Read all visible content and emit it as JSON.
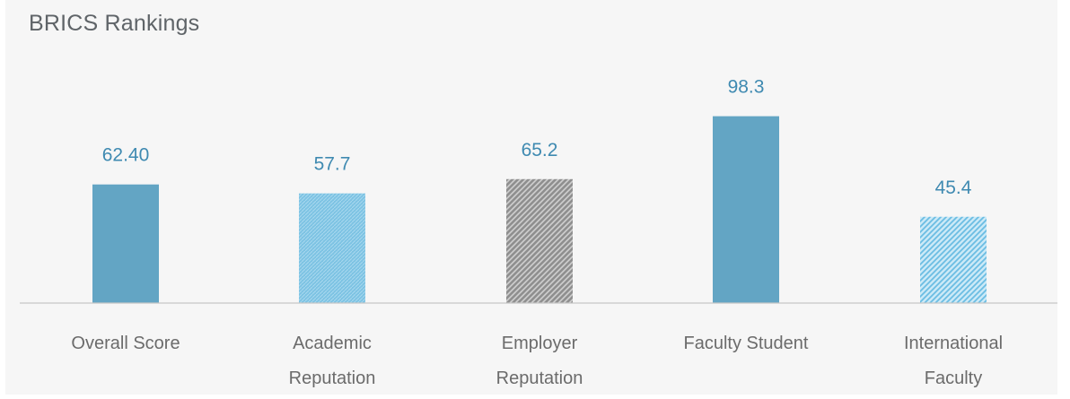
{
  "chart_data": {
    "type": "bar",
    "title": "BRICS Rankings",
    "categories": [
      [
        "Overall Score"
      ],
      [
        "Academic",
        "Reputation"
      ],
      [
        "Employer",
        "Reputation"
      ],
      [
        "Faculty Student"
      ],
      [
        "International",
        "Faculty"
      ]
    ],
    "values": [
      62.4,
      57.7,
      65.2,
      98.3,
      45.4
    ],
    "value_labels": [
      "62.40",
      "57.7",
      "65.2",
      "98.3",
      "45.4"
    ],
    "bar_styles": [
      "solid-teal",
      "stippled-lightblue",
      "hatched-gray",
      "solid-teal",
      "hatched-lightblue"
    ],
    "ylim": [
      0,
      100
    ],
    "grid": false,
    "legend": "none",
    "colors": {
      "teal": "#63a5c4",
      "light_blue": "#7dc3e3",
      "gray": "#a3a3a3",
      "value_text": "#3f8ab1",
      "axis": "#c6c6c6"
    }
  }
}
